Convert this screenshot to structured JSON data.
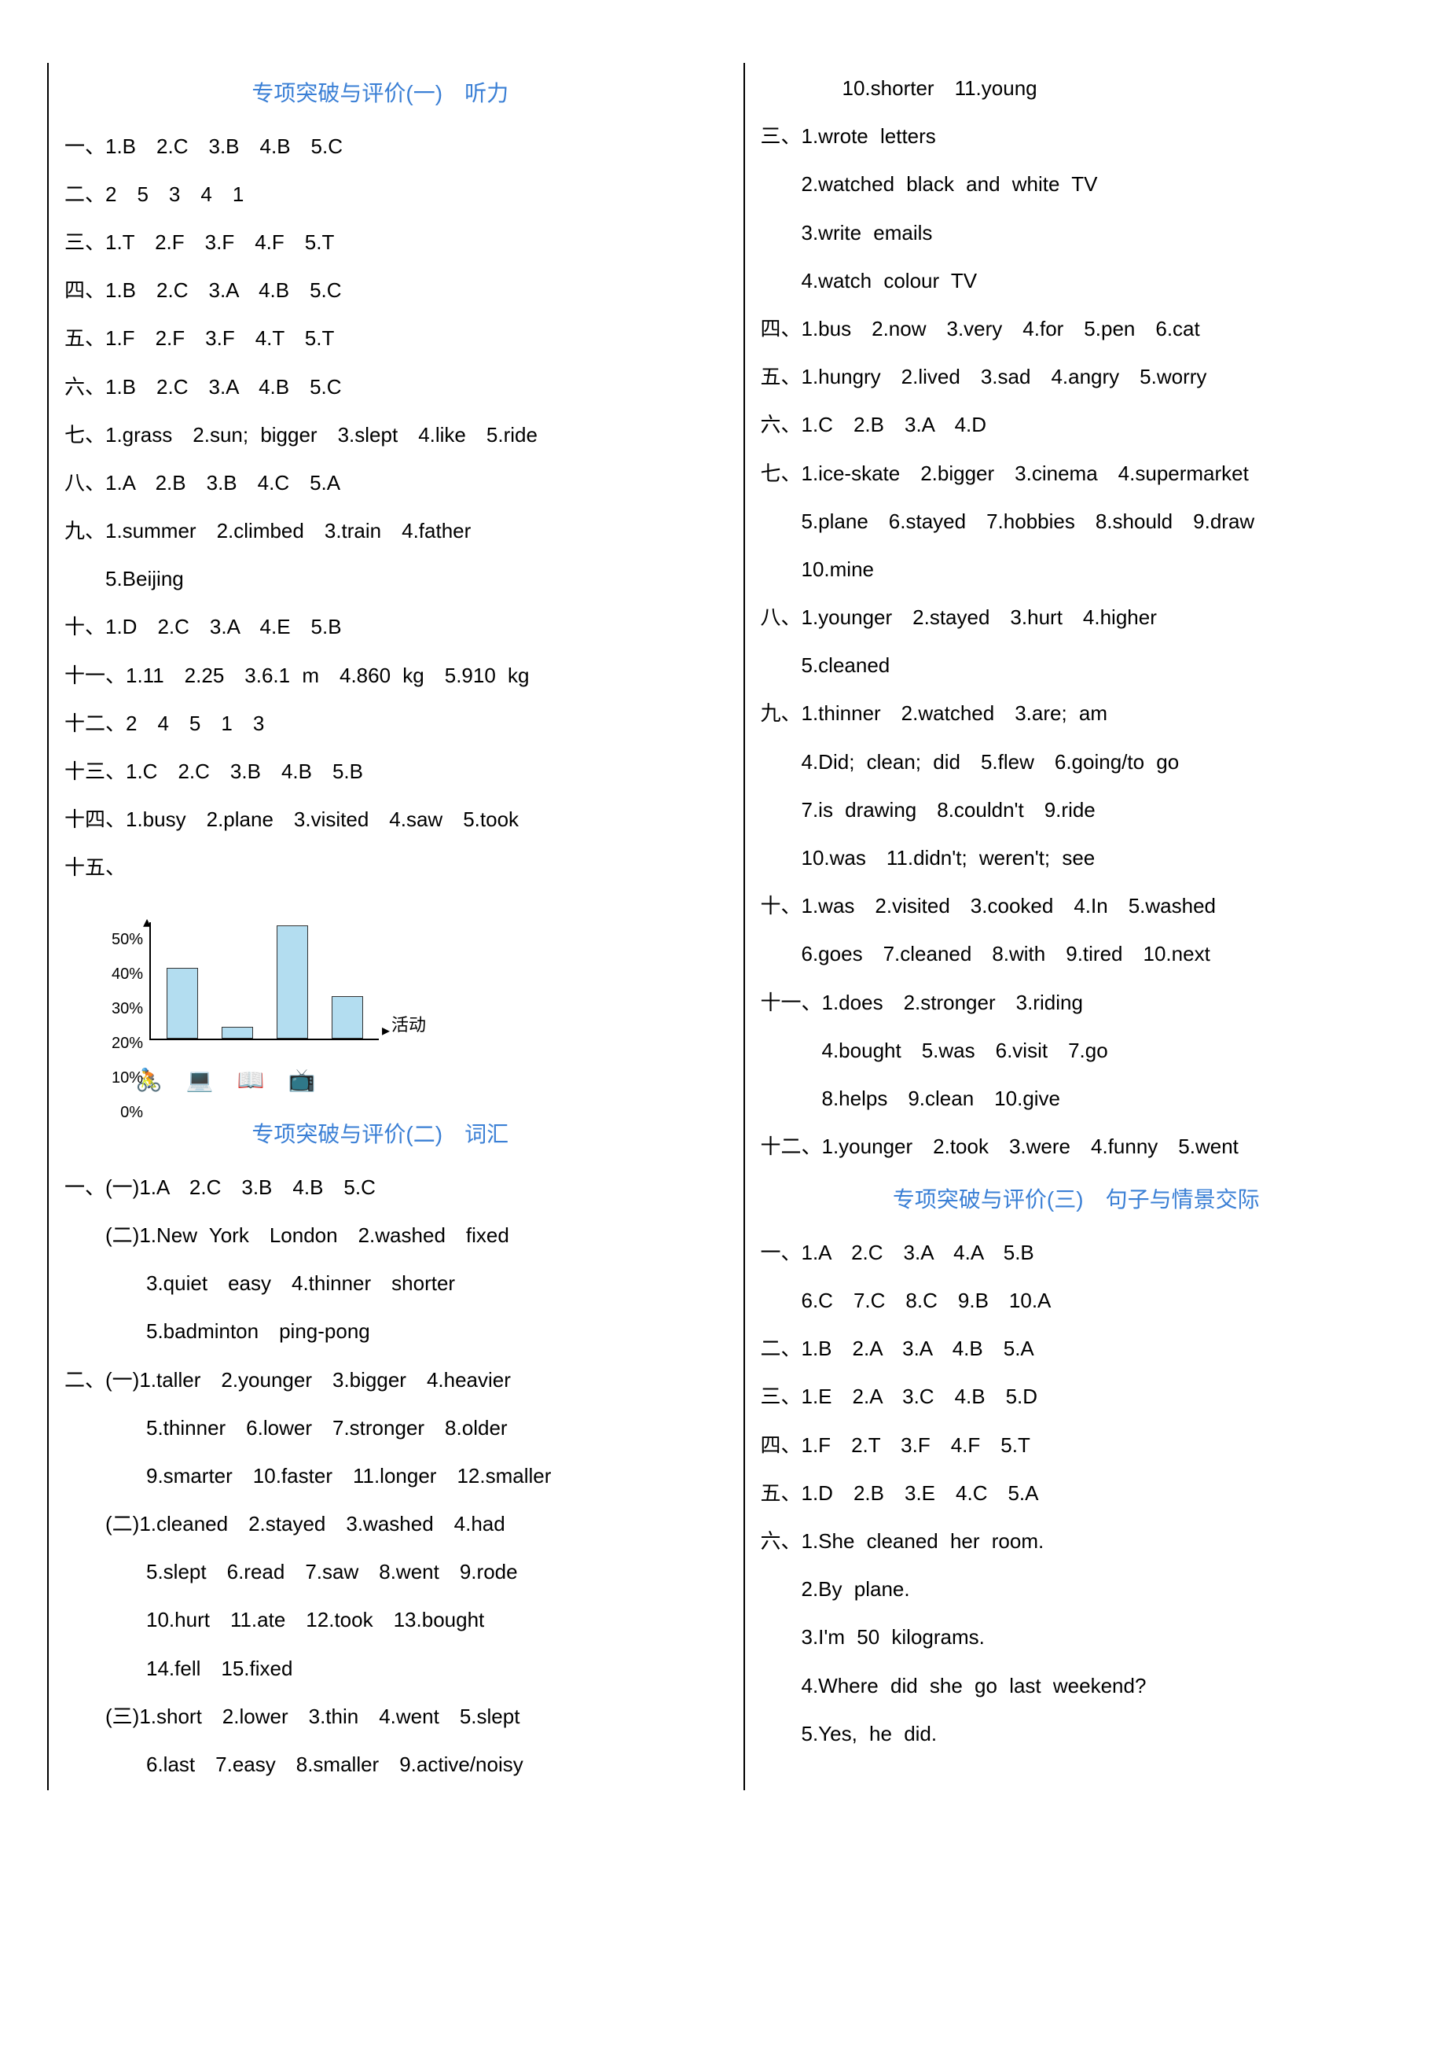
{
  "section1": {
    "title": "专项突破与评价(一)　听力",
    "lines": [
      "一、1.B　2.C　3.B　4.B　5.C",
      "二、2　5　3　4　1",
      "三、1.T　2.F　3.F　4.F　5.T",
      "四、1.B　2.C　3.A　4.B　5.C",
      "五、1.F　2.F　3.F　4.T　5.T",
      "六、1.B　2.C　3.A　4.B　5.C",
      "七、1.grass　2.sun; bigger　3.slept　4.like　5.ride",
      "八、1.A　2.B　3.B　4.C　5.A",
      "九、1.summer　2.climbed　3.train　4.father",
      "　　5.Beijing",
      "十、1.D　2.C　3.A　4.E　5.B",
      "十一、1.11　2.25　3.6.1 m　4.860 kg　5.910 kg",
      "十二、2　4　5　1　3",
      "十三、1.C　2.C　3.B　4.B　5.B",
      "十四、1.busy　2.plane　3.visited　4.saw　5.took",
      "十五、"
    ]
  },
  "chart": {
    "type": "bar",
    "y_ticks": [
      "50%",
      "40%",
      "30%",
      "20%",
      "10%",
      "0%"
    ],
    "values": [
      30,
      5,
      48,
      18
    ],
    "max": 50,
    "bar_color": "#b3ddf0",
    "x_label": "活动",
    "icons": [
      "🚴",
      "💻",
      "📖",
      "📺"
    ]
  },
  "section2": {
    "title": "专项突破与评价(二)　词汇",
    "lines_left": [
      "一、(一)1.A　2.C　3.B　4.B　5.C",
      "　　(二)1.New York　London　2.washed　fixed",
      "　　　　3.quiet　easy　4.thinner　shorter",
      "　　　　5.badminton　ping-pong",
      "二、(一)1.taller　2.younger　3.bigger　4.heavier",
      "　　　　5.thinner　6.lower　7.stronger　8.older",
      "　　　　9.smarter　10.faster　11.longer　12.smaller",
      "　　(二)1.cleaned　2.stayed　3.washed　4.had",
      "　　　　5.slept　6.read　7.saw　8.went　9.rode",
      "　　　　10.hurt　11.ate　12.took　13.bought",
      "　　　　14.fell　15.fixed",
      "　　(三)1.short　2.lower　3.thin　4.went　5.slept",
      "　　　　6.last　7.easy　8.smaller　9.active/noisy"
    ],
    "lines_right": [
      "　　　　10.shorter　11.young",
      "三、1.wrote letters",
      "　　2.watched black and white TV",
      "　　3.write emails",
      "　　4.watch colour TV",
      "四、1.bus　2.now　3.very　4.for　5.pen　6.cat",
      "五、1.hungry　2.lived　3.sad　4.angry　5.worry",
      "六、1.C　2.B　3.A　4.D",
      "七、1.ice-skate　2.bigger　3.cinema　4.supermarket",
      "　　5.plane　6.stayed　7.hobbies　8.should　9.draw",
      "　　10.mine",
      "八、1.younger　2.stayed　3.hurt　4.higher",
      "　　5.cleaned",
      "九、1.thinner　2.watched　3.are; am",
      "　　4.Did; clean; did　5.flew　6.going/to go",
      "　　7.is drawing　8.couldn't　9.ride",
      "　　10.was　11.didn't; weren't; see",
      "十、1.was　2.visited　3.cooked　4.In　5.washed",
      "　　6.goes　7.cleaned　8.with　9.tired　10.next",
      "十一、1.does　2.stronger　3.riding",
      "　　　4.bought　5.was　6.visit　7.go",
      "　　　8.helps　9.clean　10.give",
      "十二、1.younger　2.took　3.were　4.funny　5.went"
    ]
  },
  "section3": {
    "title": "专项突破与评价(三)　句子与情景交际",
    "lines": [
      "一、1.A　2.C　3.A　4.A　5.B",
      "　　6.C　7.C　8.C　9.B　10.A",
      "二、1.B　2.A　3.A　4.B　5.A",
      "三、1.E　2.A　3.C　4.B　5.D",
      "四、1.F　2.T　3.F　4.F　5.T",
      "五、1.D　2.B　3.E　4.C　5.A",
      "六、1.She cleaned her room.",
      "　　2.By plane.",
      "　　3.I'm 50 kilograms.",
      "　　4.Where did she go last weekend?",
      "　　5.Yes, he did."
    ]
  }
}
